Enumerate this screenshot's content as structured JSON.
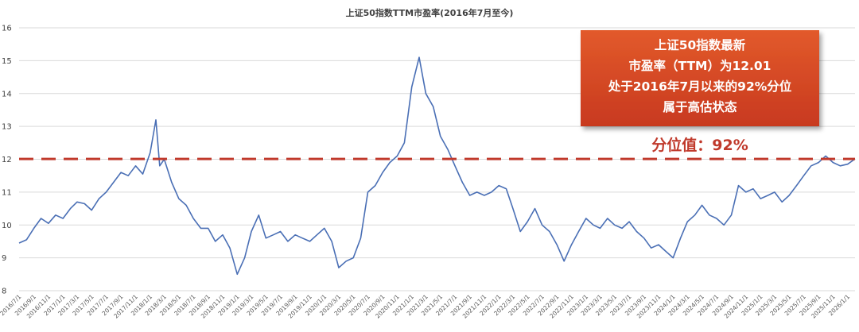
{
  "chart_data": {
    "type": "line",
    "title": "上证50指数TTM市盈率(2016年7月至今)",
    "xlabel": "",
    "ylabel": "",
    "ylim": [
      8,
      16
    ],
    "yticks": [
      8,
      9,
      10,
      11,
      12,
      13,
      14,
      15,
      16
    ],
    "grid": true,
    "x_tick_labels": [
      "2016/7/1",
      "2016/9/1",
      "2016/11/1",
      "2017/1/1",
      "2017/3/1",
      "2017/5/1",
      "2017/7/1",
      "2017/9/1",
      "2017/11/1",
      "2018/1/1",
      "2018/3/1",
      "2018/5/1",
      "2018/7/1",
      "2018/9/1",
      "2018/11/1",
      "2019/1/1",
      "2019/3/1",
      "2019/5/1",
      "2019/7/1",
      "2019/9/1",
      "2019/11/1",
      "2020/1/1",
      "2020/3/1",
      "2020/5/1",
      "2020/7/1",
      "2020/9/1",
      "2020/11/1",
      "2021/1/1",
      "2021/3/1",
      "2021/5/1",
      "2021/7/1",
      "2021/9/1",
      "2021/11/1",
      "2022/1/1",
      "2022/3/1",
      "2022/5/1",
      "2022/7/1",
      "2022/9/1",
      "2022/11/1",
      "2023/1/1",
      "2023/3/1",
      "2023/5/1",
      "2023/7/1",
      "2023/9/1",
      "2023/11/1",
      "2024/1/1",
      "2024/3/1",
      "2024/5/1",
      "2024/7/1",
      "2024/9/1",
      "2024/11/1",
      "2025/1/1",
      "2025/3/1",
      "2025/5/1",
      "2025/7/1",
      "2025/9/1",
      "2025/11/1",
      "2026/1/1"
    ],
    "series": [
      {
        "color": "#4a6fb5",
        "points": [
          [
            "2016-07-01",
            9.45
          ],
          [
            "2016-08-01",
            9.55
          ],
          [
            "2016-09-01",
            9.9
          ],
          [
            "2016-10-01",
            10.2
          ],
          [
            "2016-11-01",
            10.05
          ],
          [
            "2016-12-01",
            10.3
          ],
          [
            "2017-01-01",
            10.2
          ],
          [
            "2017-02-01",
            10.5
          ],
          [
            "2017-03-01",
            10.7
          ],
          [
            "2017-04-01",
            10.65
          ],
          [
            "2017-05-01",
            10.45
          ],
          [
            "2017-06-01",
            10.8
          ],
          [
            "2017-07-01",
            11.0
          ],
          [
            "2017-08-01",
            11.3
          ],
          [
            "2017-09-01",
            11.6
          ],
          [
            "2017-10-01",
            11.5
          ],
          [
            "2017-11-01",
            11.8
          ],
          [
            "2017-12-01",
            11.55
          ],
          [
            "2018-01-01",
            12.2
          ],
          [
            "2018-01-25",
            13.2
          ],
          [
            "2018-02-10",
            11.8
          ],
          [
            "2018-03-01",
            12.0
          ],
          [
            "2018-04-01",
            11.3
          ],
          [
            "2018-05-01",
            10.8
          ],
          [
            "2018-06-01",
            10.6
          ],
          [
            "2018-07-01",
            10.2
          ],
          [
            "2018-08-01",
            9.9
          ],
          [
            "2018-09-01",
            9.9
          ],
          [
            "2018-10-01",
            9.5
          ],
          [
            "2018-11-01",
            9.7
          ],
          [
            "2018-12-01",
            9.3
          ],
          [
            "2019-01-01",
            8.5
          ],
          [
            "2019-02-01",
            9.0
          ],
          [
            "2019-03-01",
            9.8
          ],
          [
            "2019-04-01",
            10.3
          ],
          [
            "2019-05-01",
            9.6
          ],
          [
            "2019-06-01",
            9.7
          ],
          [
            "2019-07-01",
            9.8
          ],
          [
            "2019-08-01",
            9.5
          ],
          [
            "2019-09-01",
            9.7
          ],
          [
            "2019-10-01",
            9.6
          ],
          [
            "2019-11-01",
            9.5
          ],
          [
            "2019-12-01",
            9.7
          ],
          [
            "2020-01-01",
            9.9
          ],
          [
            "2020-02-01",
            9.5
          ],
          [
            "2020-03-01",
            8.7
          ],
          [
            "2020-04-01",
            8.9
          ],
          [
            "2020-05-01",
            9.0
          ],
          [
            "2020-06-01",
            9.6
          ],
          [
            "2020-07-01",
            11.0
          ],
          [
            "2020-08-01",
            11.2
          ],
          [
            "2020-09-01",
            11.6
          ],
          [
            "2020-10-01",
            11.9
          ],
          [
            "2020-11-01",
            12.1
          ],
          [
            "2020-12-01",
            12.5
          ],
          [
            "2021-01-01",
            14.2
          ],
          [
            "2021-02-01",
            15.1
          ],
          [
            "2021-03-01",
            14.0
          ],
          [
            "2021-04-01",
            13.6
          ],
          [
            "2021-05-01",
            12.7
          ],
          [
            "2021-06-01",
            12.3
          ],
          [
            "2021-07-01",
            11.8
          ],
          [
            "2021-08-01",
            11.3
          ],
          [
            "2021-09-01",
            10.9
          ],
          [
            "2021-10-01",
            11.0
          ],
          [
            "2021-11-01",
            10.9
          ],
          [
            "2021-12-01",
            11.0
          ],
          [
            "2022-01-01",
            11.2
          ],
          [
            "2022-02-01",
            11.1
          ],
          [
            "2022-03-01",
            10.5
          ],
          [
            "2022-04-01",
            9.8
          ],
          [
            "2022-05-01",
            10.1
          ],
          [
            "2022-06-01",
            10.5
          ],
          [
            "2022-07-01",
            10.0
          ],
          [
            "2022-08-01",
            9.8
          ],
          [
            "2022-09-01",
            9.4
          ],
          [
            "2022-10-01",
            8.9
          ],
          [
            "2022-11-01",
            9.4
          ],
          [
            "2022-12-01",
            9.8
          ],
          [
            "2023-01-01",
            10.2
          ],
          [
            "2023-02-01",
            10.0
          ],
          [
            "2023-03-01",
            9.9
          ],
          [
            "2023-04-01",
            10.2
          ],
          [
            "2023-05-01",
            10.0
          ],
          [
            "2023-06-01",
            9.9
          ],
          [
            "2023-07-01",
            10.1
          ],
          [
            "2023-08-01",
            9.8
          ],
          [
            "2023-09-01",
            9.6
          ],
          [
            "2023-10-01",
            9.3
          ],
          [
            "2023-11-01",
            9.4
          ],
          [
            "2023-12-01",
            9.2
          ],
          [
            "2024-01-01",
            9.0
          ],
          [
            "2024-02-01",
            9.6
          ],
          [
            "2024-03-01",
            10.1
          ],
          [
            "2024-04-01",
            10.3
          ],
          [
            "2024-05-01",
            10.6
          ],
          [
            "2024-06-01",
            10.3
          ],
          [
            "2024-07-01",
            10.2
          ],
          [
            "2024-08-01",
            10.0
          ],
          [
            "2024-09-01",
            10.3
          ],
          [
            "2024-10-01",
            11.2
          ],
          [
            "2024-11-01",
            11.0
          ],
          [
            "2024-12-01",
            11.1
          ],
          [
            "2025-01-01",
            10.8
          ],
          [
            "2025-02-01",
            10.9
          ],
          [
            "2025-03-01",
            11.0
          ],
          [
            "2025-04-01",
            10.7
          ],
          [
            "2025-05-01",
            10.9
          ],
          [
            "2025-06-01",
            11.2
          ],
          [
            "2025-07-01",
            11.5
          ],
          [
            "2025-08-01",
            11.8
          ],
          [
            "2025-09-01",
            11.9
          ],
          [
            "2025-10-01",
            12.1
          ],
          [
            "2025-11-01",
            11.9
          ],
          [
            "2025-12-01",
            11.8
          ],
          [
            "2026-01-01",
            11.85
          ],
          [
            "2026-02-01",
            12.01
          ]
        ]
      }
    ],
    "reference_line": {
      "value": 12.01,
      "color": "#c0392b",
      "style": "dashed"
    },
    "annotation_box": {
      "lines": [
        "上证50指数最新",
        "市盈率（TTM）为12.01",
        "处于2016年7月以来的92%分位",
        "属于高估状态"
      ],
      "background": "#d64a24"
    },
    "percentile_label": "分位值：92%"
  }
}
